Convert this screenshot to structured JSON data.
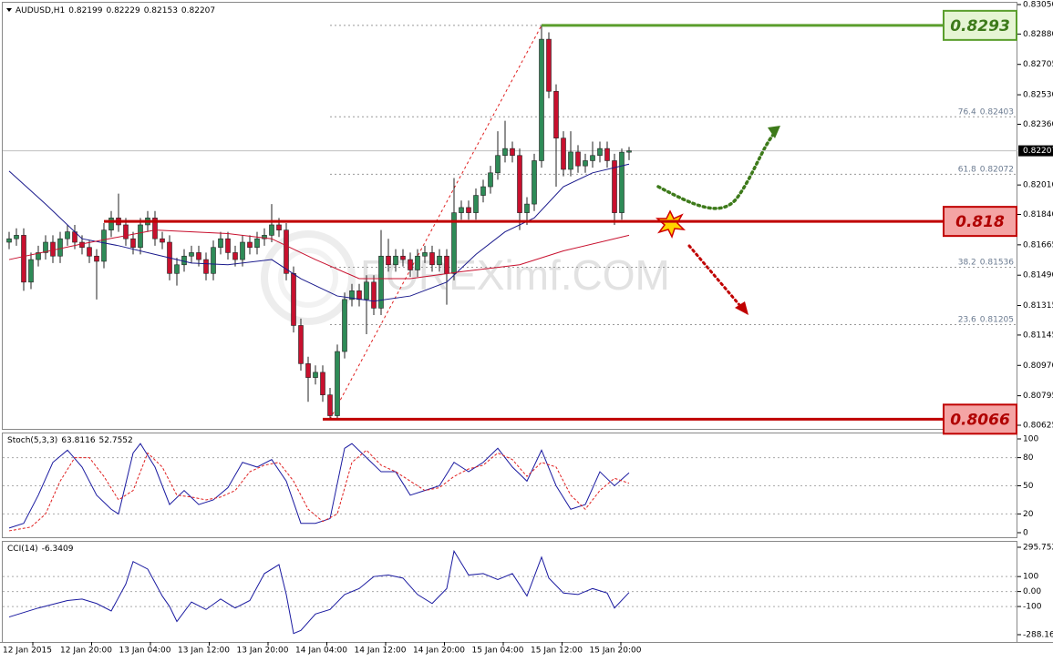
{
  "chart_data": [
    {
      "type": "candlestick",
      "title": "AUDUSD,H1",
      "ohlc": [
        0.82199,
        0.82229,
        0.82153,
        0.82207
      ],
      "watermark": "FOREXimf.COM",
      "up_color": "#2e8b57",
      "down_color": "#c8102e",
      "ylim": [
        0.80625,
        0.8305
      ],
      "yticks": [
        {
          "value": 0.8305,
          "label": "0.83050"
        },
        {
          "value": 0.8288,
          "label": "0.82880"
        },
        0.82705,
        {
          "value": 0.8253,
          "label": "0.82530"
        },
        {
          "value": 0.8236,
          "label": "0.82360"
        },
        {
          "value": 0.8201,
          "label": "0.82010"
        },
        {
          "value": 0.8184,
          "label": "0.81840"
        },
        0.81665,
        {
          "value": 0.8149,
          "label": "0.81490"
        },
        0.81315,
        0.81145,
        {
          "value": 0.8097,
          "label": "0.80970"
        },
        0.80795,
        0.80625
      ],
      "current_price": 0.82207,
      "time_labels": [
        "12 Jan 2015",
        "12 Jan 20:00",
        "13 Jan 04:00",
        "13 Jan 12:00",
        "13 Jan 20:00",
        "14 Jan 04:00",
        "14 Jan 12:00",
        "14 Jan 20:00",
        "15 Jan 04:00",
        "15 Jan 12:00",
        "15 Jan 20:00"
      ],
      "candles": [
        [
          0.8168,
          0.8174,
          0.8164,
          0.817
        ],
        [
          0.817,
          0.8176,
          0.8166,
          0.8172
        ],
        [
          0.8172,
          0.8176,
          0.814,
          0.8145
        ],
        [
          0.8145,
          0.8162,
          0.8141,
          0.8158
        ],
        [
          0.8158,
          0.8166,
          0.8154,
          0.8162
        ],
        [
          0.8162,
          0.8172,
          0.8158,
          0.8168
        ],
        [
          0.8168,
          0.8172,
          0.8156,
          0.816
        ],
        [
          0.816,
          0.8174,
          0.8156,
          0.817
        ],
        [
          0.817,
          0.8178,
          0.8166,
          0.8174
        ],
        [
          0.8174,
          0.8178,
          0.8164,
          0.8168
        ],
        [
          0.8168,
          0.8172,
          0.8161,
          0.8165
        ],
        [
          0.8165,
          0.8169,
          0.8156,
          0.816
        ],
        [
          0.816,
          0.8164,
          0.8135,
          0.8157
        ],
        [
          0.8157,
          0.8179,
          0.8153,
          0.8175
        ],
        [
          0.8175,
          0.8186,
          0.8171,
          0.8182
        ],
        [
          0.8182,
          0.8196,
          0.8174,
          0.8178
        ],
        [
          0.8178,
          0.8182,
          0.8166,
          0.817
        ],
        [
          0.817,
          0.8174,
          0.8161,
          0.8165
        ],
        [
          0.8165,
          0.8182,
          0.8161,
          0.8178
        ],
        [
          0.8178,
          0.8186,
          0.8174,
          0.8182
        ],
        [
          0.8182,
          0.8186,
          0.8166,
          0.817
        ],
        [
          0.817,
          0.8174,
          0.8164,
          0.8168
        ],
        [
          0.8168,
          0.8172,
          0.8146,
          0.815
        ],
        [
          0.815,
          0.8159,
          0.8143,
          0.8155
        ],
        [
          0.8155,
          0.8164,
          0.8151,
          0.816
        ],
        [
          0.816,
          0.8166,
          0.8156,
          0.8162
        ],
        [
          0.8162,
          0.8166,
          0.8154,
          0.8158
        ],
        [
          0.8158,
          0.8162,
          0.8146,
          0.815
        ],
        [
          0.815,
          0.8169,
          0.8146,
          0.8165
        ],
        [
          0.8165,
          0.8174,
          0.8161,
          0.817
        ],
        [
          0.817,
          0.8174,
          0.8158,
          0.8162
        ],
        [
          0.8162,
          0.8166,
          0.8154,
          0.8158
        ],
        [
          0.8158,
          0.8172,
          0.8154,
          0.8168
        ],
        [
          0.8168,
          0.8172,
          0.8161,
          0.8165
        ],
        [
          0.8165,
          0.8174,
          0.8161,
          0.817
        ],
        [
          0.817,
          0.8176,
          0.8166,
          0.8172
        ],
        [
          0.8172,
          0.819,
          0.8168,
          0.8178
        ],
        [
          0.8178,
          0.8182,
          0.8171,
          0.8175
        ],
        [
          0.8175,
          0.8179,
          0.8146,
          0.815
        ],
        [
          0.815,
          0.8154,
          0.8116,
          0.812
        ],
        [
          0.812,
          0.8124,
          0.8094,
          0.8098
        ],
        [
          0.8098,
          0.8102,
          0.8076,
          0.809
        ],
        [
          0.809,
          0.8097,
          0.8086,
          0.8093
        ],
        [
          0.8093,
          0.8097,
          0.8076,
          0.808
        ],
        [
          0.808,
          0.8084,
          0.8066,
          0.8068
        ],
        [
          0.8068,
          0.8109,
          0.8066,
          0.8105
        ],
        [
          0.8105,
          0.8139,
          0.8101,
          0.8135
        ],
        [
          0.8135,
          0.8144,
          0.8131,
          0.814
        ],
        [
          0.814,
          0.8144,
          0.8131,
          0.8135
        ],
        [
          0.8135,
          0.8149,
          0.8115,
          0.8145
        ],
        [
          0.8145,
          0.8149,
          0.8126,
          0.813
        ],
        [
          0.813,
          0.8175,
          0.8126,
          0.816
        ],
        [
          0.816,
          0.817,
          0.8151,
          0.8155
        ],
        [
          0.8155,
          0.8164,
          0.8151,
          0.816
        ],
        [
          0.816,
          0.8164,
          0.8154,
          0.8158
        ],
        [
          0.8158,
          0.8162,
          0.8148,
          0.8152
        ],
        [
          0.8152,
          0.8164,
          0.8148,
          0.816
        ],
        [
          0.816,
          0.8166,
          0.8156,
          0.8162
        ],
        [
          0.8162,
          0.8166,
          0.8151,
          0.8155
        ],
        [
          0.8155,
          0.8164,
          0.8151,
          0.816
        ],
        [
          0.816,
          0.8164,
          0.8132,
          0.815
        ],
        [
          0.815,
          0.8205,
          0.8146,
          0.8185
        ],
        [
          0.8185,
          0.8192,
          0.8181,
          0.8188
        ],
        [
          0.8188,
          0.8192,
          0.8181,
          0.8185
        ],
        [
          0.8185,
          0.8199,
          0.8181,
          0.8195
        ],
        [
          0.8195,
          0.8204,
          0.8191,
          0.82
        ],
        [
          0.82,
          0.8212,
          0.8196,
          0.8208
        ],
        [
          0.8208,
          0.8232,
          0.8204,
          0.8218
        ],
        [
          0.8218,
          0.8238,
          0.8214,
          0.8222
        ],
        [
          0.8222,
          0.8226,
          0.8214,
          0.8218
        ],
        [
          0.8218,
          0.8222,
          0.8175,
          0.8185
        ],
        [
          0.8185,
          0.8194,
          0.8178,
          0.819
        ],
        [
          0.819,
          0.8219,
          0.8186,
          0.8215
        ],
        [
          0.8215,
          0.8293,
          0.8211,
          0.8285
        ],
        [
          0.8285,
          0.8289,
          0.8251,
          0.8255
        ],
        [
          0.8255,
          0.8259,
          0.82,
          0.8228
        ],
        [
          0.8228,
          0.8232,
          0.8206,
          0.821
        ],
        [
          0.821,
          0.8232,
          0.8206,
          0.822
        ],
        [
          0.822,
          0.8224,
          0.8208,
          0.8212
        ],
        [
          0.8212,
          0.8219,
          0.8208,
          0.8215
        ],
        [
          0.8215,
          0.8226,
          0.8211,
          0.8218
        ],
        [
          0.8218,
          0.8226,
          0.8214,
          0.8222
        ],
        [
          0.8222,
          0.8226,
          0.8211,
          0.8215
        ],
        [
          0.8215,
          0.8219,
          0.8178,
          0.8185
        ],
        [
          0.8185,
          0.8222,
          0.8181,
          0.82199
        ],
        [
          0.82199,
          0.82229,
          0.82153,
          0.82207
        ]
      ],
      "series": [
        {
          "color": "#1a1a8c",
          "x": [
            0,
            5,
            10,
            15,
            20,
            25,
            30,
            36,
            40,
            45,
            50,
            55,
            60,
            64,
            68,
            72,
            76,
            80,
            85
          ],
          "values": [
            0.8209,
            0.819,
            0.817,
            0.8166,
            0.8161,
            0.8156,
            0.8155,
            0.8158,
            0.8147,
            0.8137,
            0.8134,
            0.8137,
            0.8145,
            0.8161,
            0.8174,
            0.8182,
            0.82,
            0.8208,
            0.8213
          ]
        },
        {
          "color": "#c8102e",
          "x": [
            0,
            10,
            20,
            30,
            36,
            42,
            48,
            55,
            62,
            70,
            76,
            85
          ],
          "values": [
            0.8158,
            0.8167,
            0.8175,
            0.8173,
            0.817,
            0.8158,
            0.8147,
            0.8147,
            0.8151,
            0.8155,
            0.8163,
            0.8172
          ]
        }
      ],
      "levels": [
        {
          "value": 0.8293,
          "color": "#5a9e2c",
          "fill": "#e6f5d4",
          "text_color": "#3d7a1a",
          "from": 73
        },
        {
          "value": 0.818,
          "color": "#c00000",
          "fill": "#f4a4a4",
          "text_color": "#b00000",
          "from": 13
        },
        {
          "value": 0.8066,
          "color": "#c00000",
          "fill": "#f4a4a4",
          "text_color": "#b00000",
          "from": 43
        }
      ],
      "fib_anchor": {
        "x": [
          44,
          73
        ],
        "values": [
          0.8066,
          0.8293
        ]
      },
      "fib_levels": [
        {
          "ratio": 76.4,
          "value": 0.82403
        },
        {
          "ratio": 61.8,
          "value": 0.82072
        },
        {
          "ratio": 38.2,
          "value": 0.81536
        },
        {
          "ratio": 23.6,
          "value": 0.81205
        }
      ]
    },
    {
      "type": "line",
      "title": "Stoch(5,3,3)",
      "readings": [
        63.8116,
        52.7552
      ],
      "ylim": [
        0,
        100
      ],
      "yticks": [
        100,
        80,
        50,
        20,
        0
      ],
      "series": [
        {
          "color": "#1a1aa0",
          "dash": false,
          "x": [
            0,
            2,
            4,
            6,
            8,
            10,
            12,
            14,
            15,
            17,
            18,
            20,
            22,
            24,
            26,
            28,
            30,
            32,
            34,
            36,
            38,
            40,
            42,
            44,
            46,
            47,
            49,
            51,
            53,
            55,
            57,
            59,
            61,
            63,
            65,
            67,
            69,
            71,
            73,
            75,
            77,
            79,
            81,
            83,
            85
          ],
          "values": [
            5,
            10,
            40,
            75,
            88,
            70,
            40,
            25,
            20,
            85,
            95,
            70,
            30,
            45,
            30,
            35,
            48,
            75,
            70,
            78,
            55,
            10,
            10,
            15,
            90,
            95,
            80,
            65,
            65,
            40,
            45,
            50,
            75,
            65,
            75,
            90,
            70,
            55,
            88,
            50,
            25,
            30,
            65,
            50,
            63.8116
          ]
        },
        {
          "color": "#e02020",
          "dash": true,
          "x": [
            0,
            3,
            5,
            7,
            9,
            11,
            13,
            15,
            17,
            19,
            21,
            23,
            25,
            27,
            29,
            31,
            33,
            35,
            37,
            39,
            41,
            43,
            45,
            47,
            49,
            51,
            53,
            55,
            57,
            59,
            61,
            63,
            65,
            67,
            69,
            71,
            73,
            75,
            77,
            79,
            81,
            83,
            85
          ],
          "values": [
            2,
            6,
            20,
            55,
            80,
            80,
            60,
            35,
            45,
            85,
            70,
            40,
            38,
            35,
            38,
            45,
            65,
            72,
            75,
            55,
            25,
            12,
            20,
            75,
            88,
            72,
            65,
            55,
            45,
            48,
            60,
            68,
            72,
            85,
            78,
            60,
            75,
            70,
            40,
            25,
            45,
            58,
            52.7552
          ]
        }
      ]
    },
    {
      "type": "line",
      "title": "CCI(14)",
      "readings": [
        -6.3409
      ],
      "ylim": [
        -288.165,
        295.752
      ],
      "yticks": [
        295.752,
        100,
        {
          "value": 0,
          "label": "0.00"
        },
        -100,
        -288.165
      ],
      "series": [
        {
          "color": "#1a1aa0",
          "dash": false,
          "x": [
            0,
            4,
            8,
            10,
            12,
            14,
            16,
            17,
            19,
            21,
            22,
            23,
            25,
            27,
            29,
            31,
            33,
            35,
            37,
            38,
            39,
            40,
            42,
            44,
            46,
            48,
            50,
            52,
            54,
            56,
            58,
            60,
            61,
            63,
            65,
            67,
            69,
            71,
            73,
            74,
            76,
            78,
            80,
            82,
            83,
            85
          ],
          "values": [
            -170,
            -110,
            -60,
            -50,
            -80,
            -130,
            50,
            200,
            150,
            -30,
            -100,
            -200,
            -70,
            -120,
            -50,
            -110,
            -60,
            120,
            180,
            -20,
            -280,
            -260,
            -150,
            -120,
            -20,
            20,
            100,
            110,
            90,
            -20,
            -80,
            20,
            270,
            110,
            120,
            80,
            120,
            -30,
            230,
            90,
            -10,
            -20,
            20,
            -10,
            -110,
            -6.3409
          ]
        }
      ]
    }
  ]
}
